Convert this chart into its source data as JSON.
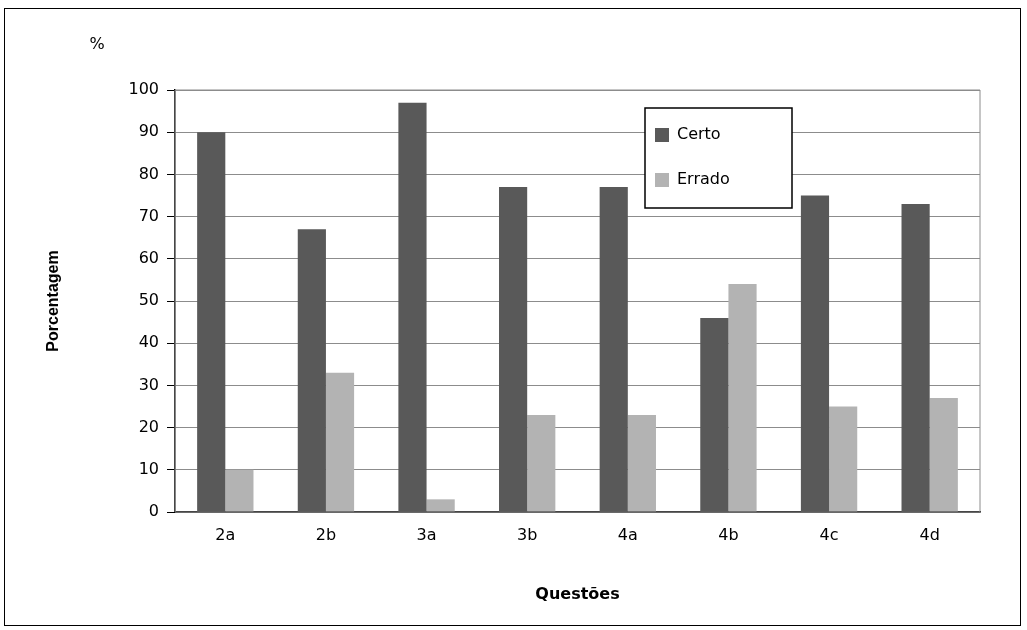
{
  "chart_data": {
    "type": "bar",
    "xlabel": "Questões",
    "ylabel": "Porcentagem",
    "annotations": [
      "%"
    ],
    "categories": [
      "2a",
      "2b",
      "3a",
      "3b",
      "4a",
      "4b",
      "4c",
      "4d"
    ],
    "series": [
      {
        "name": "Certo",
        "color": "#595959",
        "values": [
          90,
          67,
          97,
          77,
          77,
          46,
          75,
          73
        ]
      },
      {
        "name": "Errado",
        "color": "#b3b3b3",
        "values": [
          10,
          33,
          3,
          23,
          23,
          54,
          25,
          27
        ]
      }
    ],
    "ylim": [
      0,
      100
    ],
    "yticks": [
      0,
      10,
      20,
      30,
      40,
      50,
      60,
      70,
      80,
      90,
      100
    ],
    "grid": "y",
    "legend": "top right"
  }
}
